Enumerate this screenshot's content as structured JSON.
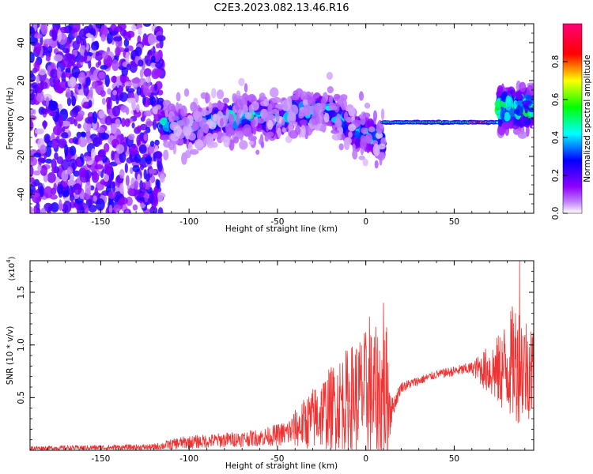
{
  "title": "C2E3.2023.082.13.46.R16",
  "chart_data": [
    {
      "type": "heatmap",
      "xlabel": "Height of straight line (km)",
      "ylabel": "Frequency (Hz)",
      "xlim": [
        -190,
        95
      ],
      "ylim": [
        -50,
        50
      ],
      "xticks": [
        -150,
        -100,
        -50,
        0,
        50
      ],
      "yticks": [
        -40,
        -20,
        0,
        20,
        40
      ],
      "colorbar": {
        "label": "Normalized spectral amplitude",
        "range": [
          0,
          1
        ],
        "ticks": [
          "0.0",
          "0.2",
          "0.4",
          "0.6",
          "0.8"
        ],
        "colormap": "rainbow",
        "stops": [
          "#ffffff",
          "#a000ff",
          "#0000ff",
          "#00ffff",
          "#00ff00",
          "#ffff00",
          "#ff0000",
          "#ff00aa"
        ]
      },
      "features": {
        "broadband_noise_region": {
          "x_range": [
            -190,
            -115
          ],
          "freq_range": [
            -50,
            50
          ],
          "amplitude": 0.3
        },
        "noisy_band": {
          "x_range": [
            -115,
            10
          ],
          "center_freq_points": [
            [
              -115,
              -3
            ],
            [
              -100,
              -6
            ],
            [
              -80,
              0
            ],
            [
              -60,
              2
            ],
            [
              -50,
              -2
            ],
            [
              -40,
              5
            ],
            [
              -30,
              3
            ],
            [
              -20,
              5
            ],
            [
              -10,
              -5
            ],
            [
              0,
              -8
            ],
            [
              8,
              -12
            ]
          ],
          "half_width_hz": 8,
          "amplitude": 0.3
        },
        "stable_line": {
          "x_range": [
            10,
            75
          ],
          "freq_hz": -2,
          "amplitude": 0.55,
          "peak_amplitude": 0.9
        },
        "end_region": {
          "x_range": [
            75,
            95
          ],
          "center_freq_hz": 5,
          "half_width_hz": 10,
          "amplitude": 0.35
        }
      }
    },
    {
      "type": "line",
      "series": [
        {
          "color": "#ee3333"
        }
      ],
      "xlabel": "Height of straight line (km)",
      "ylabel": "SNR (10 * v/v)",
      "y_multiplier": "(x10",
      "y_multiplier_exp": "4",
      "y_multiplier_close": ")",
      "xlim": [
        -190,
        95
      ],
      "ylim": [
        0,
        1.8
      ],
      "xticks": [
        -150,
        -100,
        -50,
        0,
        50
      ],
      "yticks": [
        0.5,
        1.0,
        1.5
      ],
      "ytick_labels": [
        "0.5",
        "1.0",
        "1.5"
      ],
      "envelope": [
        {
          "x": -190,
          "base": 0.02,
          "noise": 0.02
        },
        {
          "x": -120,
          "base": 0.03,
          "noise": 0.03
        },
        {
          "x": -105,
          "base": 0.07,
          "noise": 0.06
        },
        {
          "x": -60,
          "base": 0.12,
          "noise": 0.08
        },
        {
          "x": -45,
          "base": 0.16,
          "noise": 0.12
        },
        {
          "x": -30,
          "base": 0.3,
          "noise": 0.3
        },
        {
          "x": -15,
          "base": 0.45,
          "noise": 0.45
        },
        {
          "x": 0,
          "base": 0.55,
          "noise": 0.6
        },
        {
          "x": 12,
          "base": 0.5,
          "noise": 0.7
        },
        {
          "x": 15,
          "base": 0.4,
          "noise": 0.1
        },
        {
          "x": 20,
          "base": 0.6,
          "noise": 0.05
        },
        {
          "x": 40,
          "base": 0.72,
          "noise": 0.04
        },
        {
          "x": 60,
          "base": 0.78,
          "noise": 0.06
        },
        {
          "x": 75,
          "base": 0.75,
          "noise": 0.35
        },
        {
          "x": 85,
          "base": 0.85,
          "noise": 0.6
        },
        {
          "x": 95,
          "base": 0.75,
          "noise": 0.45
        }
      ],
      "peaks": [
        {
          "x": 2,
          "y": 1.27
        },
        {
          "x": 10,
          "y": 1.4
        },
        {
          "x": 87,
          "y": 1.8
        },
        {
          "x": 83,
          "y": 1.3
        }
      ]
    }
  ]
}
